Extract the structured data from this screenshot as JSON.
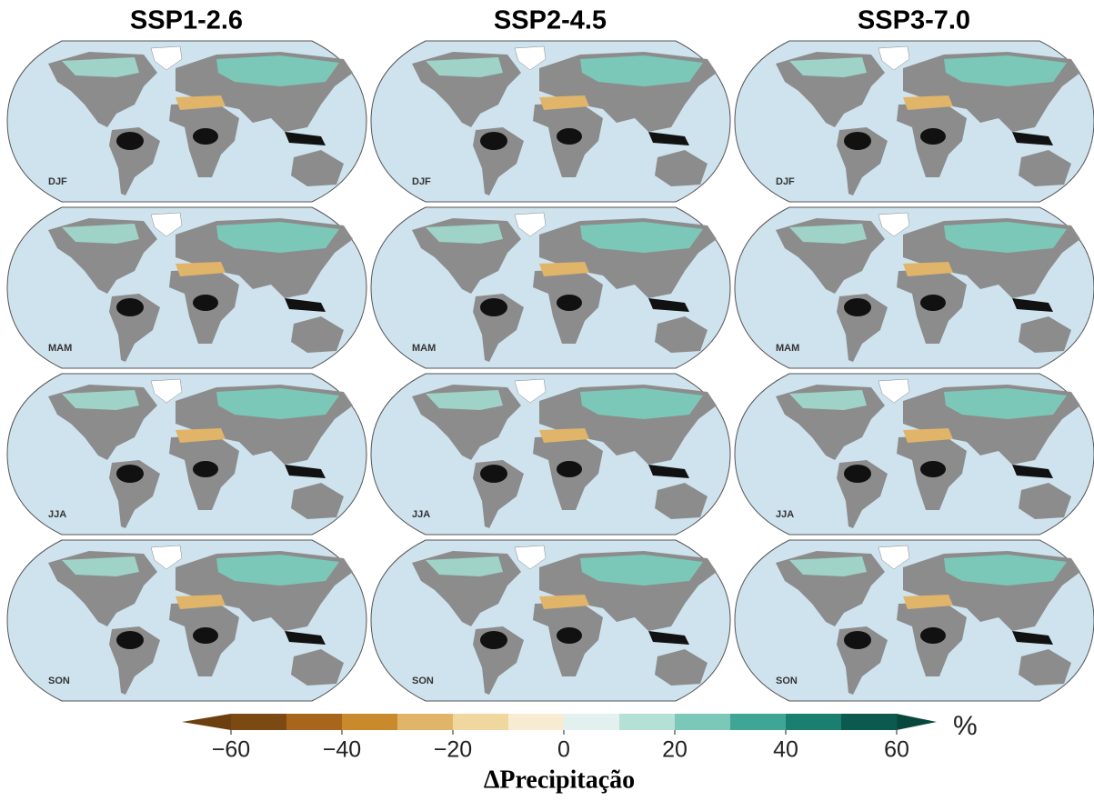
{
  "columns": [
    "SSP1-2.6",
    "SSP2-4.5",
    "SSP3-7.0"
  ],
  "rows": [
    "DJF",
    "MAM",
    "JJA",
    "SON"
  ],
  "colorbar": {
    "type": "colorbar",
    "label": "ΔPrecipitação",
    "unit": "%",
    "lim": [
      -60,
      60
    ],
    "bounds": [
      -60,
      -50,
      -40,
      -30,
      -20,
      -10,
      0,
      10,
      20,
      30,
      40,
      50,
      60
    ],
    "colors": [
      "#7a4a12",
      "#a8661c",
      "#c98a2e",
      "#e0b56a",
      "#f0d7a0",
      "#f7ecd2",
      "#e3f1ee",
      "#b5e0d6",
      "#7cc8b8",
      "#3fa696",
      "#1b7f70",
      "#0b5a4d"
    ],
    "under_color": "#6b3f0e",
    "over_color": "#08473c",
    "ticks": [
      {
        "value": -60,
        "label": "−60"
      },
      {
        "value": -40,
        "label": "−40"
      },
      {
        "value": -20,
        "label": "−20"
      },
      0,
      20,
      40,
      60
    ]
  }
}
